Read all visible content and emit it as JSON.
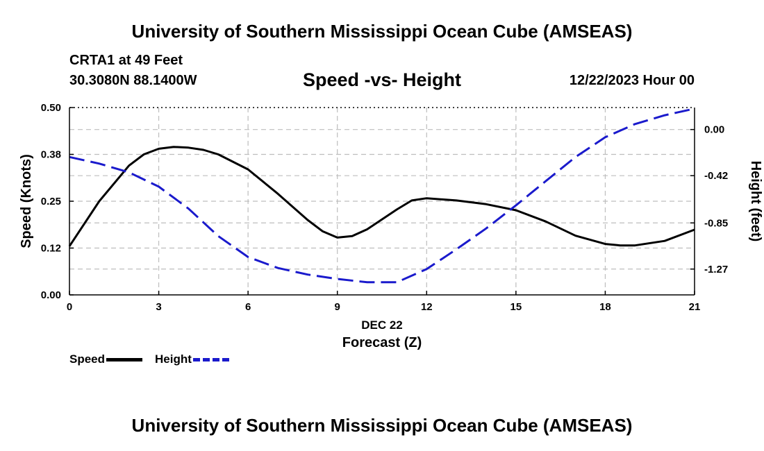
{
  "header": {
    "title": "University of Southern Mississippi Ocean Cube (AMSEAS)",
    "station": "CRTA1 at 49 Feet",
    "coords": "30.3080N  88.1400W",
    "subtitle": "Speed -vs- Height",
    "datetime": "12/22/2023 Hour 00"
  },
  "footer": {
    "title": "University of Southern Mississippi Ocean Cube (AMSEAS)"
  },
  "legend": {
    "speed": "Speed",
    "height": "Height"
  },
  "colors": {
    "speed": "#000000",
    "height": "#1a1acc",
    "grid": "#bdbdbd"
  },
  "chart_data": {
    "type": "line",
    "title": "Speed -vs- Height",
    "xlabel": "Forecast (Z)",
    "xlabel_date": "DEC 22",
    "ylabel": "Speed (Knots)",
    "y2label": "Height (feet)",
    "xlim": [
      0,
      21
    ],
    "ylim": [
      0,
      0.5
    ],
    "y2lim": [
      -1.505,
      0.2
    ],
    "x_ticks": [
      0,
      3,
      6,
      9,
      12,
      15,
      18,
      21
    ],
    "x_tick_labels": [
      "0",
      "3",
      "6",
      "9",
      "12",
      "15",
      "18",
      "21"
    ],
    "y_ticks": [
      0,
      0.125,
      0.25,
      0.375,
      0.5
    ],
    "y_tick_labels": [
      "0.00",
      "0.12",
      "0.25",
      "0.38",
      "0.50"
    ],
    "y2_ticks": [
      0,
      -0.42,
      -0.85,
      -1.27
    ],
    "y2_tick_labels": [
      "0.00",
      "-0.42",
      "-0.85",
      "-1.27"
    ],
    "grid": true,
    "series": [
      {
        "name": "Speed",
        "axis": "left",
        "style": "solid",
        "x": [
          0,
          1,
          2,
          2.5,
          3,
          3.5,
          4,
          4.5,
          5,
          6,
          7,
          8,
          8.5,
          9,
          9.5,
          10,
          11,
          11.5,
          12,
          13,
          14,
          15,
          16,
          17,
          18,
          18.5,
          19,
          20,
          21
        ],
        "values": [
          0.13,
          0.25,
          0.345,
          0.375,
          0.39,
          0.395,
          0.393,
          0.387,
          0.375,
          0.335,
          0.27,
          0.2,
          0.17,
          0.153,
          0.157,
          0.175,
          0.228,
          0.252,
          0.258,
          0.252,
          0.242,
          0.226,
          0.196,
          0.158,
          0.136,
          0.132,
          0.132,
          0.144,
          0.174
        ]
      },
      {
        "name": "Height",
        "axis": "right",
        "style": "dashed",
        "x": [
          0,
          1,
          2,
          3,
          4,
          5,
          6,
          7,
          8,
          9,
          10,
          11,
          12,
          13,
          14,
          15,
          16,
          17,
          18,
          19,
          20,
          21
        ],
        "values": [
          -0.25,
          -0.31,
          -0.39,
          -0.52,
          -0.72,
          -0.97,
          -1.16,
          -1.26,
          -1.32,
          -1.36,
          -1.39,
          -1.39,
          -1.27,
          -1.09,
          -0.9,
          -0.69,
          -0.47,
          -0.25,
          -0.07,
          0.05,
          0.13,
          0.19
        ]
      }
    ]
  }
}
